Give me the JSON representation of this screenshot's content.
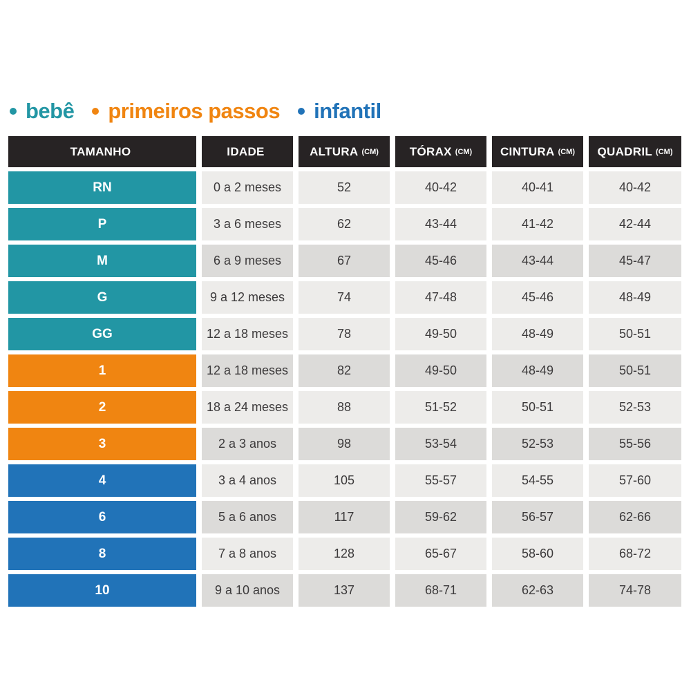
{
  "legend": {
    "items": [
      {
        "label": "bebê",
        "key": "bebe",
        "color": "#2296a4"
      },
      {
        "label": "primeiros passos",
        "key": "primeiros_passos",
        "color": "#f08511"
      },
      {
        "label": "infantil",
        "key": "infantil",
        "color": "#2173b8"
      }
    ]
  },
  "table": {
    "headers": [
      {
        "label": "TAMANHO",
        "unit": ""
      },
      {
        "label": "IDADE",
        "unit": ""
      },
      {
        "label": "ALTURA",
        "unit": "(CM)"
      },
      {
        "label": "TÓRAX",
        "unit": "(CM)"
      },
      {
        "label": "CINTURA",
        "unit": "(CM)"
      },
      {
        "label": "QUADRIL",
        "unit": "(CM)"
      }
    ],
    "rows": [
      {
        "tamanho": "RN",
        "category": "bebe",
        "shade": "light",
        "idade": "0 a 2 meses",
        "altura": "52",
        "torax": "40-42",
        "cintura": "40-41",
        "quadril": "40-42"
      },
      {
        "tamanho": "P",
        "category": "bebe",
        "shade": "light",
        "idade": "3 a 6 meses",
        "altura": "62",
        "torax": "43-44",
        "cintura": "41-42",
        "quadril": "42-44"
      },
      {
        "tamanho": "M",
        "category": "bebe",
        "shade": "dark",
        "idade": "6 a 9 meses",
        "altura": "67",
        "torax": "45-46",
        "cintura": "43-44",
        "quadril": "45-47"
      },
      {
        "tamanho": "G",
        "category": "bebe",
        "shade": "light",
        "idade": "9 a 12 meses",
        "altura": "74",
        "torax": "47-48",
        "cintura": "45-46",
        "quadril": "48-49"
      },
      {
        "tamanho": "GG",
        "category": "bebe",
        "shade": "light",
        "idade": "12 a 18 meses",
        "altura": "78",
        "torax": "49-50",
        "cintura": "48-49",
        "quadril": "50-51"
      },
      {
        "tamanho": "1",
        "category": "primeiros_passos",
        "shade": "dark",
        "idade": "12 a 18 meses",
        "altura": "82",
        "torax": "49-50",
        "cintura": "48-49",
        "quadril": "50-51"
      },
      {
        "tamanho": "2",
        "category": "primeiros_passos",
        "shade": "light",
        "idade": "18 a 24 meses",
        "altura": "88",
        "torax": "51-52",
        "cintura": "50-51",
        "quadril": "52-53"
      },
      {
        "tamanho": "3",
        "category": "primeiros_passos",
        "shade": "dark",
        "idade": "2 a 3 anos",
        "altura": "98",
        "torax": "53-54",
        "cintura": "52-53",
        "quadril": "55-56"
      },
      {
        "tamanho": "4",
        "category": "infantil",
        "shade": "light",
        "idade": "3 a 4 anos",
        "altura": "105",
        "torax": "55-57",
        "cintura": "54-55",
        "quadril": "57-60"
      },
      {
        "tamanho": "6",
        "category": "infantil",
        "shade": "dark",
        "idade": "5 a 6 anos",
        "altura": "117",
        "torax": "59-62",
        "cintura": "56-57",
        "quadril": "62-66"
      },
      {
        "tamanho": "8",
        "category": "infantil",
        "shade": "light",
        "idade": "7 a 8 anos",
        "altura": "128",
        "torax": "65-67",
        "cintura": "58-60",
        "quadril": "68-72"
      },
      {
        "tamanho": "10",
        "category": "infantil",
        "shade": "dark",
        "idade": "9 a 10 anos",
        "altura": "137",
        "torax": "68-71",
        "cintura": "62-63",
        "quadril": "74-78"
      }
    ]
  },
  "colors": {
    "category": {
      "bebe": "#2296a4",
      "primeiros_passos": "#f08511",
      "infantil": "#2173b8"
    },
    "row_light": "#edecea",
    "row_dark": "#dcdbd9",
    "header_bg": "#272324",
    "header_text": "#ffffff",
    "cell_text": "#3c3a3b",
    "background": "#ffffff"
  },
  "chart_data": {
    "type": "table",
    "title": "",
    "legend": [
      "bebê",
      "primeiros passos",
      "infantil"
    ],
    "legend_position": "top-left",
    "columns": [
      "TAMANHO",
      "IDADE",
      "ALTURA (CM)",
      "TÓRAX (CM)",
      "CINTURA (CM)",
      "QUADRIL (CM)"
    ],
    "rows": [
      [
        "RN",
        "0 a 2 meses",
        "52",
        "40-42",
        "40-41",
        "40-42"
      ],
      [
        "P",
        "3 a 6 meses",
        "62",
        "43-44",
        "41-42",
        "42-44"
      ],
      [
        "M",
        "6 a 9 meses",
        "67",
        "45-46",
        "43-44",
        "45-47"
      ],
      [
        "G",
        "9 a 12 meses",
        "74",
        "47-48",
        "45-46",
        "48-49"
      ],
      [
        "GG",
        "12 a 18 meses",
        "78",
        "49-50",
        "48-49",
        "50-51"
      ],
      [
        "1",
        "12 a 18 meses",
        "82",
        "49-50",
        "48-49",
        "50-51"
      ],
      [
        "2",
        "18 a 24 meses",
        "88",
        "51-52",
        "50-51",
        "52-53"
      ],
      [
        "3",
        "2 a 3 anos",
        "98",
        "53-54",
        "52-53",
        "55-56"
      ],
      [
        "4",
        "3 a 4 anos",
        "105",
        "55-57",
        "54-55",
        "57-60"
      ],
      [
        "6",
        "5 a 6 anos",
        "117",
        "59-62",
        "56-57",
        "62-66"
      ],
      [
        "8",
        "7 a 8 anos",
        "128",
        "65-67",
        "58-60",
        "68-72"
      ],
      [
        "10",
        "9 a 10 anos",
        "137",
        "68-71",
        "62-63",
        "74-78"
      ]
    ],
    "row_groups": [
      {
        "group": "bebê",
        "rows": [
          "RN",
          "P",
          "M",
          "G",
          "GG"
        ]
      },
      {
        "group": "primeiros passos",
        "rows": [
          "1",
          "2",
          "3"
        ]
      },
      {
        "group": "infantil",
        "rows": [
          "4",
          "6",
          "8",
          "10"
        ]
      }
    ]
  }
}
